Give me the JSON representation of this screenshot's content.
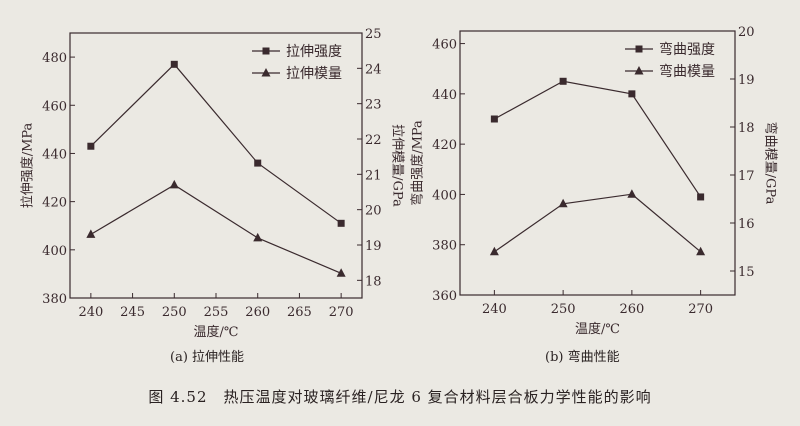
{
  "colors": {
    "line": "#3a2a2e",
    "background": "#ebe9e3"
  },
  "figure_caption": "图 4.52　热压温度对玻璃纤维/尼龙 6 复合材料层合板力学性能的影响",
  "chart_data": [
    {
      "type": "line",
      "subcaption": "(a) 拉伸性能",
      "xlabel": "温度/℃",
      "ylabel": "拉伸强度/MPa",
      "y2label": "拉伸模量/GPa",
      "x": [
        240,
        250,
        260,
        270
      ],
      "xlim": [
        237.5,
        272.5
      ],
      "xticks": [
        240,
        245,
        250,
        255,
        260,
        265,
        270
      ],
      "ylim": [
        380,
        490
      ],
      "yticks": [
        380,
        400,
        420,
        440,
        460,
        480
      ],
      "y2lim": [
        17.5,
        25
      ],
      "y2ticks": [
        18,
        19,
        20,
        21,
        22,
        23,
        24,
        25
      ],
      "legend": "top-right",
      "series": [
        {
          "name": "拉伸强度",
          "axis": "left",
          "marker": "square",
          "values": [
            443,
            477,
            436,
            411
          ]
        },
        {
          "name": "拉伸模量",
          "axis": "right",
          "marker": "triangle",
          "values": [
            19.3,
            20.7,
            19.2,
            18.2
          ]
        }
      ]
    },
    {
      "type": "line",
      "subcaption": "(b) 弯曲性能",
      "xlabel": "温度/℃",
      "ylabel": "弯曲强度/MPa",
      "y2label": "弯曲模量/GPa",
      "x": [
        240,
        250,
        260,
        270
      ],
      "xlim": [
        235,
        275
      ],
      "xticks": [
        240,
        250,
        260,
        270
      ],
      "ylim": [
        360,
        465
      ],
      "yticks": [
        360,
        380,
        400,
        420,
        440,
        460
      ],
      "y2lim": [
        14.5,
        20
      ],
      "y2ticks": [
        15,
        16,
        17,
        18,
        19,
        20
      ],
      "legend": "top-right",
      "series": [
        {
          "name": "弯曲强度",
          "axis": "left",
          "marker": "square",
          "values": [
            430,
            445,
            440,
            399
          ]
        },
        {
          "name": "弯曲模量",
          "axis": "right",
          "marker": "triangle",
          "values": [
            15.4,
            16.4,
            16.6,
            15.4
          ]
        }
      ]
    }
  ]
}
